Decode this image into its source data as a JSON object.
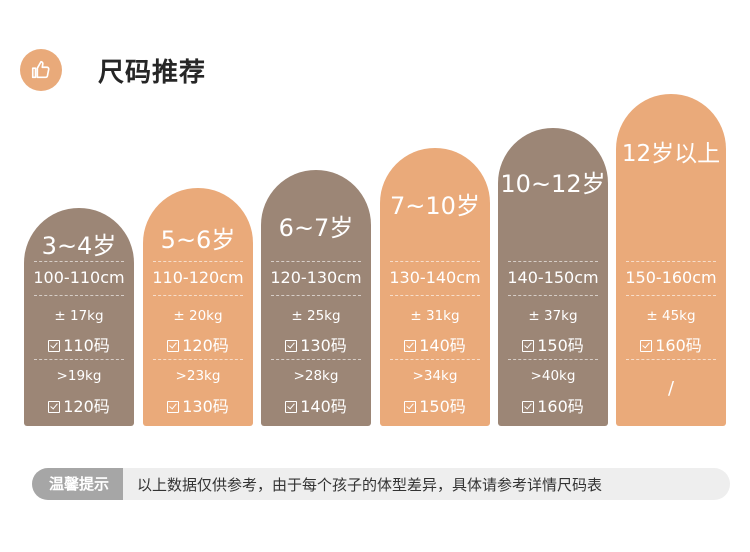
{
  "header": {
    "title": "尺码推荐",
    "icon": "thumbs-up-icon",
    "icon_color": "#e9aa7a"
  },
  "colors": {
    "brown": "#9c8676",
    "peach": "#eaaa7a",
    "tip_label_bg": "#a6a6a6",
    "tip_bg": "#eeeeee"
  },
  "columns": [
    {
      "age": "3~4岁",
      "height": "100-110cm",
      "weight1": "± 17kg",
      "size1": "110码",
      "weight2": ">19kg",
      "size2": "120码",
      "tone": "brown"
    },
    {
      "age": "5~6岁",
      "height": "110-120cm",
      "weight1": "± 20kg",
      "size1": "120码",
      "weight2": ">23kg",
      "size2": "130码",
      "tone": "peach"
    },
    {
      "age": "6~7岁",
      "height": "120-130cm",
      "weight1": "± 25kg",
      "size1": "130码",
      "weight2": ">28kg",
      "size2": "140码",
      "tone": "brown"
    },
    {
      "age": "7~10岁",
      "height": "130-140cm",
      "weight1": "± 31kg",
      "size1": "140码",
      "weight2": ">34kg",
      "size2": "150码",
      "tone": "peach"
    },
    {
      "age": "10~12岁",
      "height": "140-150cm",
      "weight1": "± 37kg",
      "size1": "150码",
      "weight2": ">40kg",
      "size2": "160码",
      "tone": "brown"
    },
    {
      "age": "12岁以上",
      "height": "150-160cm",
      "weight1": "± 45kg",
      "size1": "160码",
      "slash": "/",
      "tone": "peach"
    }
  ],
  "tip": {
    "label": "温馨提示",
    "text": "以上数据仅供参考，由于每个孩子的体型差异，具体请参考详情尺码表"
  }
}
